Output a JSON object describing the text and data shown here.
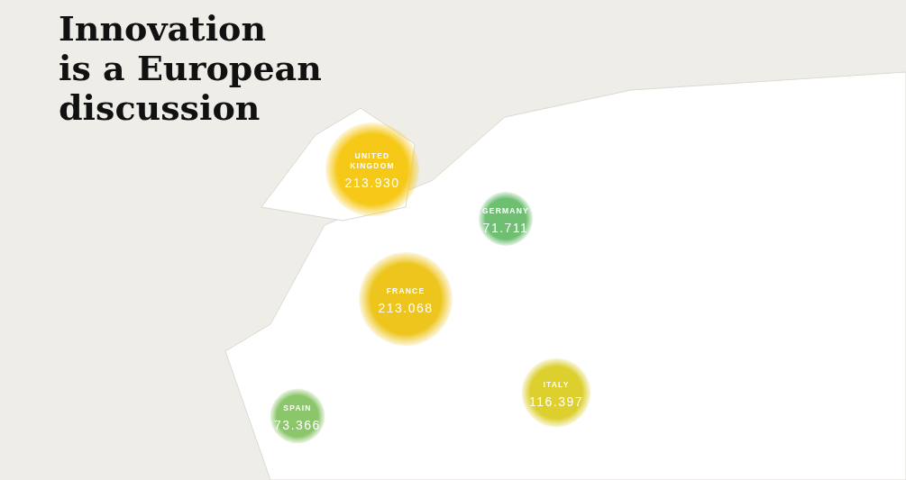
{
  "chart_data": {
    "type": "other",
    "title": "Innovation is a European discussion",
    "categories": [
      "UNITED KINGDOM",
      "GERMANY",
      "FRANCE",
      "SPAIN",
      "ITALY"
    ],
    "values": [
      213930,
      71711,
      213068,
      73366,
      116397
    ],
    "value_labels": [
      "213.930",
      "71.711",
      "213.068",
      "73.366",
      "116.397"
    ],
    "colors": [
      "#f6c817",
      "#6fbf73",
      "#eec51c",
      "#8cc66a",
      "#dccf2e"
    ]
  }
}
